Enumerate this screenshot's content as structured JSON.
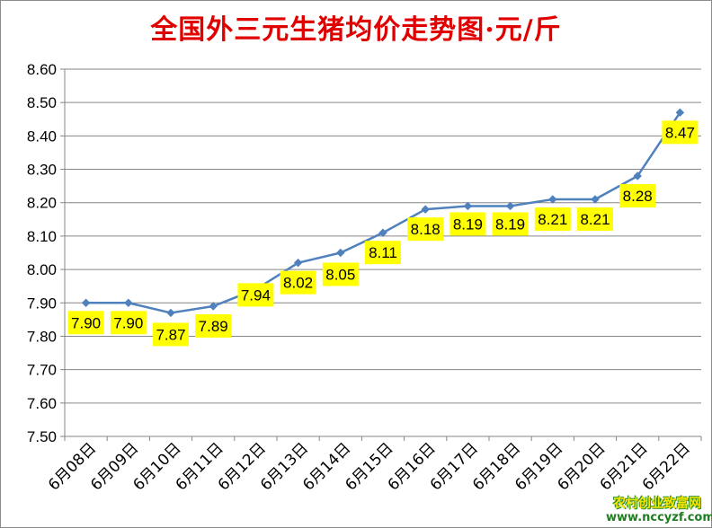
{
  "chart_data": {
    "type": "line",
    "title": "全国外三元生猪均价走势图·元/斤",
    "categories": [
      "6月08日",
      "6月09日",
      "6月10日",
      "6月11日",
      "6月12日",
      "6月13日",
      "6月14日",
      "6月15日",
      "6月16日",
      "6月17日",
      "6月18日",
      "6月19日",
      "6月20日",
      "6月21日",
      "6月22日"
    ],
    "values": [
      7.9,
      7.9,
      7.87,
      7.89,
      7.94,
      8.02,
      8.05,
      8.11,
      8.18,
      8.19,
      8.19,
      8.21,
      8.21,
      8.28,
      8.47
    ],
    "data_labels": [
      "7.90",
      "7.90",
      "7.87",
      "7.89",
      "7.94",
      "8.02",
      "8.05",
      "8.11",
      "8.18",
      "8.19",
      "8.19",
      "8.21",
      "8.21",
      "8.28",
      "8.47"
    ],
    "y_ticks": [
      "7.50",
      "7.60",
      "7.70",
      "7.80",
      "7.90",
      "8.00",
      "8.10",
      "8.20",
      "8.30",
      "8.40",
      "8.50",
      "8.60"
    ],
    "ylim": [
      7.5,
      8.6
    ],
    "grid": true,
    "legend": "none",
    "colors": {
      "line": "#4f81bd",
      "label_bg": "#ffff00",
      "title": "#e00000",
      "grid": "#868686"
    }
  },
  "watermark": {
    "line1": "农村创业致富网",
    "line2": "www.nccyzf.com"
  }
}
